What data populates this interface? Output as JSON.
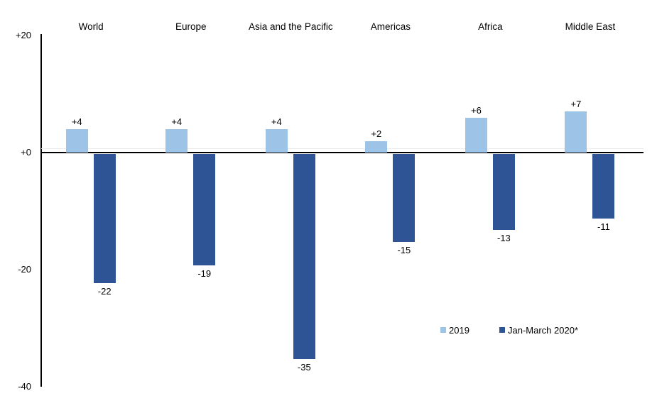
{
  "chart_data": {
    "type": "bar",
    "categories": [
      "World",
      "Europe",
      "Asia and the Pacific",
      "Americas",
      "Africa",
      "Middle East"
    ],
    "series": [
      {
        "name": "2019",
        "color": "#9DC3E6",
        "values": [
          4,
          4,
          4,
          2,
          6,
          7
        ],
        "labels": [
          "+4",
          "+4",
          "+4",
          "+2",
          "+6",
          "+7"
        ]
      },
      {
        "name": "Jan-March 2020*",
        "color": "#2F5496",
        "values": [
          -22,
          -19,
          -35,
          -15,
          -13,
          -11
        ],
        "labels": [
          "-22",
          "-19",
          "-35",
          "-15",
          "-13",
          "-11"
        ]
      }
    ],
    "y_axis": {
      "ticks": [
        "+20",
        "+0",
        "-20",
        "-40"
      ],
      "tick_values": [
        20,
        0,
        -20,
        -40
      ],
      "ylim": [
        -40,
        20
      ]
    },
    "title": "",
    "xlabel": "",
    "ylabel": "",
    "grid": "off",
    "legend_position": "inside-bottom-right"
  }
}
